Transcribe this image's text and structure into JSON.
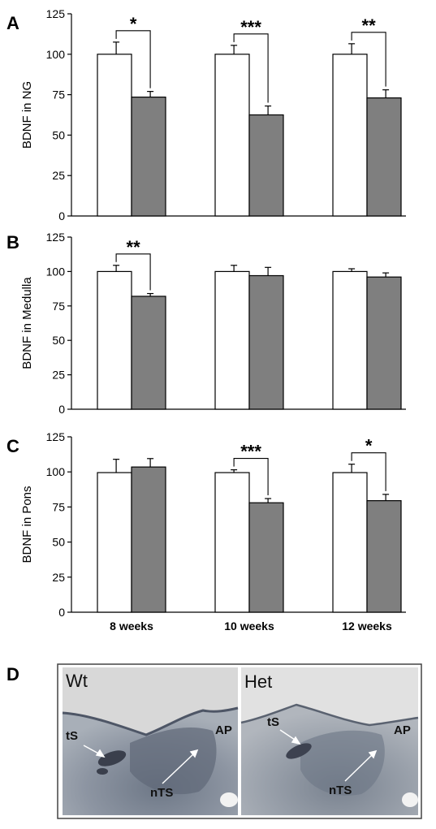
{
  "chart_data": [
    {
      "panel": "A",
      "type": "bar",
      "ylabel": "BDNF in NG",
      "ylim": [
        0,
        125
      ],
      "yticks": [
        0,
        25,
        50,
        75,
        100,
        125
      ],
      "categories": [
        "8 weeks",
        "10 weeks",
        "12 weeks"
      ],
      "series": [
        {
          "values": [
            100,
            100,
            100
          ],
          "errors": [
            7.5,
            5.5,
            6.5
          ],
          "color": "#ffffff"
        },
        {
          "values": [
            73.5,
            62.5,
            73
          ],
          "errors": [
            3.5,
            5.5,
            5
          ],
          "color": "#7f7f7f"
        }
      ],
      "significance": [
        "*",
        "***",
        "**"
      ]
    },
    {
      "panel": "B",
      "type": "bar",
      "ylabel": "BDNF in Medulla",
      "ylim": [
        0,
        125
      ],
      "yticks": [
        0,
        25,
        50,
        75,
        100,
        125
      ],
      "categories": [
        "8 weeks",
        "10 weeks",
        "12 weeks"
      ],
      "series": [
        {
          "values": [
            100,
            100,
            100
          ],
          "errors": [
            4.5,
            4.5,
            2
          ],
          "color": "#ffffff"
        },
        {
          "values": [
            82,
            97,
            96
          ],
          "errors": [
            2,
            6,
            3
          ],
          "color": "#7f7f7f"
        }
      ],
      "significance": [
        "**",
        "",
        ""
      ]
    },
    {
      "panel": "C",
      "type": "bar",
      "ylabel": "BDNF in Pons",
      "ylim": [
        0,
        125
      ],
      "yticks": [
        0,
        25,
        50,
        75,
        100,
        125
      ],
      "categories": [
        "8 weeks",
        "10 weeks",
        "12 weeks"
      ],
      "series": [
        {
          "values": [
            99.5,
            99.5,
            99.5
          ],
          "errors": [
            9.5,
            2,
            6
          ],
          "color": "#ffffff"
        },
        {
          "values": [
            103.5,
            78,
            79.5
          ],
          "errors": [
            6,
            3,
            4.5
          ],
          "color": "#7f7f7f"
        }
      ],
      "significance": [
        "",
        "***",
        "*"
      ]
    }
  ],
  "panel_d": {
    "letter": "D",
    "left": {
      "title": "Wt",
      "labels": [
        "tS",
        "AP",
        "nTS"
      ]
    },
    "right": {
      "title": "Het",
      "labels": [
        "tS",
        "AP",
        "nTS"
      ]
    }
  }
}
